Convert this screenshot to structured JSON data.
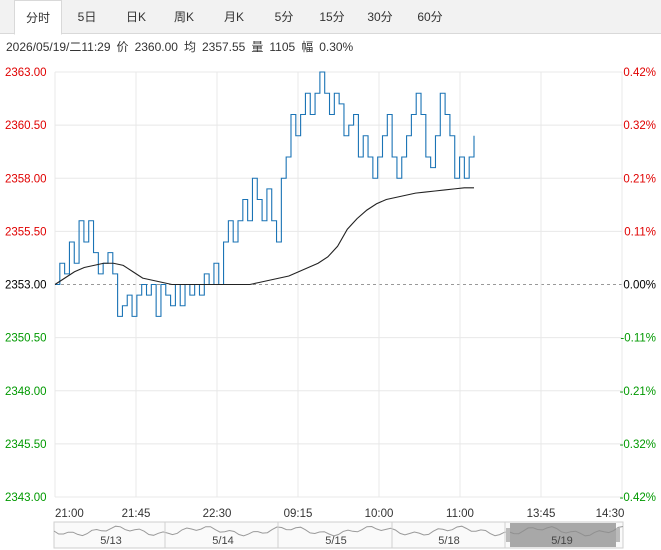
{
  "tabs": [
    {
      "label": "分时",
      "active": true
    },
    {
      "label": "5日",
      "active": false
    },
    {
      "label": "日K",
      "active": false
    },
    {
      "label": "周K",
      "active": false
    },
    {
      "label": "月K",
      "active": false
    },
    {
      "label": "5分",
      "active": false
    },
    {
      "label": "15分",
      "active": false
    },
    {
      "label": "30分",
      "active": false
    },
    {
      "label": "60分",
      "active": false
    }
  ],
  "info": {
    "datetime": "2026/05/19/二11:29",
    "price_label": "价",
    "price": "2360.00",
    "avg_label": "均",
    "avg": "2357.55",
    "volume_label": "量",
    "volume": "1105",
    "amplitude_label": "幅",
    "amplitude": "0.30%"
  },
  "colors": {
    "up": "#e00000",
    "down": "#009900",
    "neutral": "#000000",
    "price_line": "#1a73b5",
    "avg_line": "#222222",
    "grid": "#e8e8e8"
  },
  "chart_data": {
    "type": "line",
    "base_price": 2353.0,
    "ylim": [
      2343.0,
      2363.0
    ],
    "y_ticks": [
      "2363.00",
      "2360.50",
      "2358.00",
      "2355.50",
      "2353.00",
      "2350.50",
      "2348.00",
      "2345.50",
      "2343.00"
    ],
    "pct_ticks": [
      "0.42%",
      "0.32%",
      "0.21%",
      "0.11%",
      "0.00%",
      "-0.11%",
      "-0.21%",
      "-0.32%",
      "-0.42%"
    ],
    "x_ticks": [
      "21:00",
      "21:45",
      "22:30",
      "09:15",
      "10:00",
      "11:00",
      "13:45",
      "14:30"
    ],
    "nav_dates": [
      "5/13",
      "5/14",
      "5/15",
      "5/18",
      "5/19"
    ],
    "price_series": [
      2353,
      2354,
      2353.5,
      2355,
      2354,
      2356,
      2355,
      2356,
      2354.5,
      2353.5,
      2354,
      2354.5,
      2353.5,
      2351.5,
      2352,
      2352.5,
      2351.5,
      2352.5,
      2353,
      2352.5,
      2353,
      2351.5,
      2353,
      2352.5,
      2352,
      2353,
      2352,
      2353,
      2352.5,
      2353,
      2352.5,
      2353.5,
      2353,
      2354,
      2353,
      2355,
      2356,
      2355,
      2356,
      2357,
      2356,
      2358,
      2357,
      2356,
      2357.5,
      2356,
      2355,
      2358,
      2359,
      2361,
      2360,
      2361,
      2362,
      2361,
      2362,
      2363,
      2362,
      2361,
      2362,
      2361.5,
      2360,
      2360.5,
      2361,
      2359,
      2360,
      2359,
      2358,
      2359,
      2360,
      2361,
      2359,
      2358,
      2359,
      2360,
      2361,
      2362,
      2361,
      2359,
      2358.5,
      2360,
      2362,
      2361,
      2360,
      2358,
      2359,
      2358,
      2359,
      2360
    ],
    "avg_series": [
      2353,
      2353.3,
      2353.6,
      2353.8,
      2353.9,
      2354,
      2354,
      2353.9,
      2353.6,
      2353.3,
      2353.2,
      2353.1,
      2353,
      2353,
      2353,
      2353,
      2353,
      2353,
      2353,
      2353,
      2353,
      2353.1,
      2353.2,
      2353.3,
      2353.4,
      2353.6,
      2353.8,
      2354,
      2354.3,
      2354.8,
      2355.6,
      2356.1,
      2356.5,
      2356.8,
      2357,
      2357.1,
      2357.2,
      2357.3,
      2357.35,
      2357.4,
      2357.45,
      2357.5,
      2357.55,
      2357.55
    ]
  }
}
